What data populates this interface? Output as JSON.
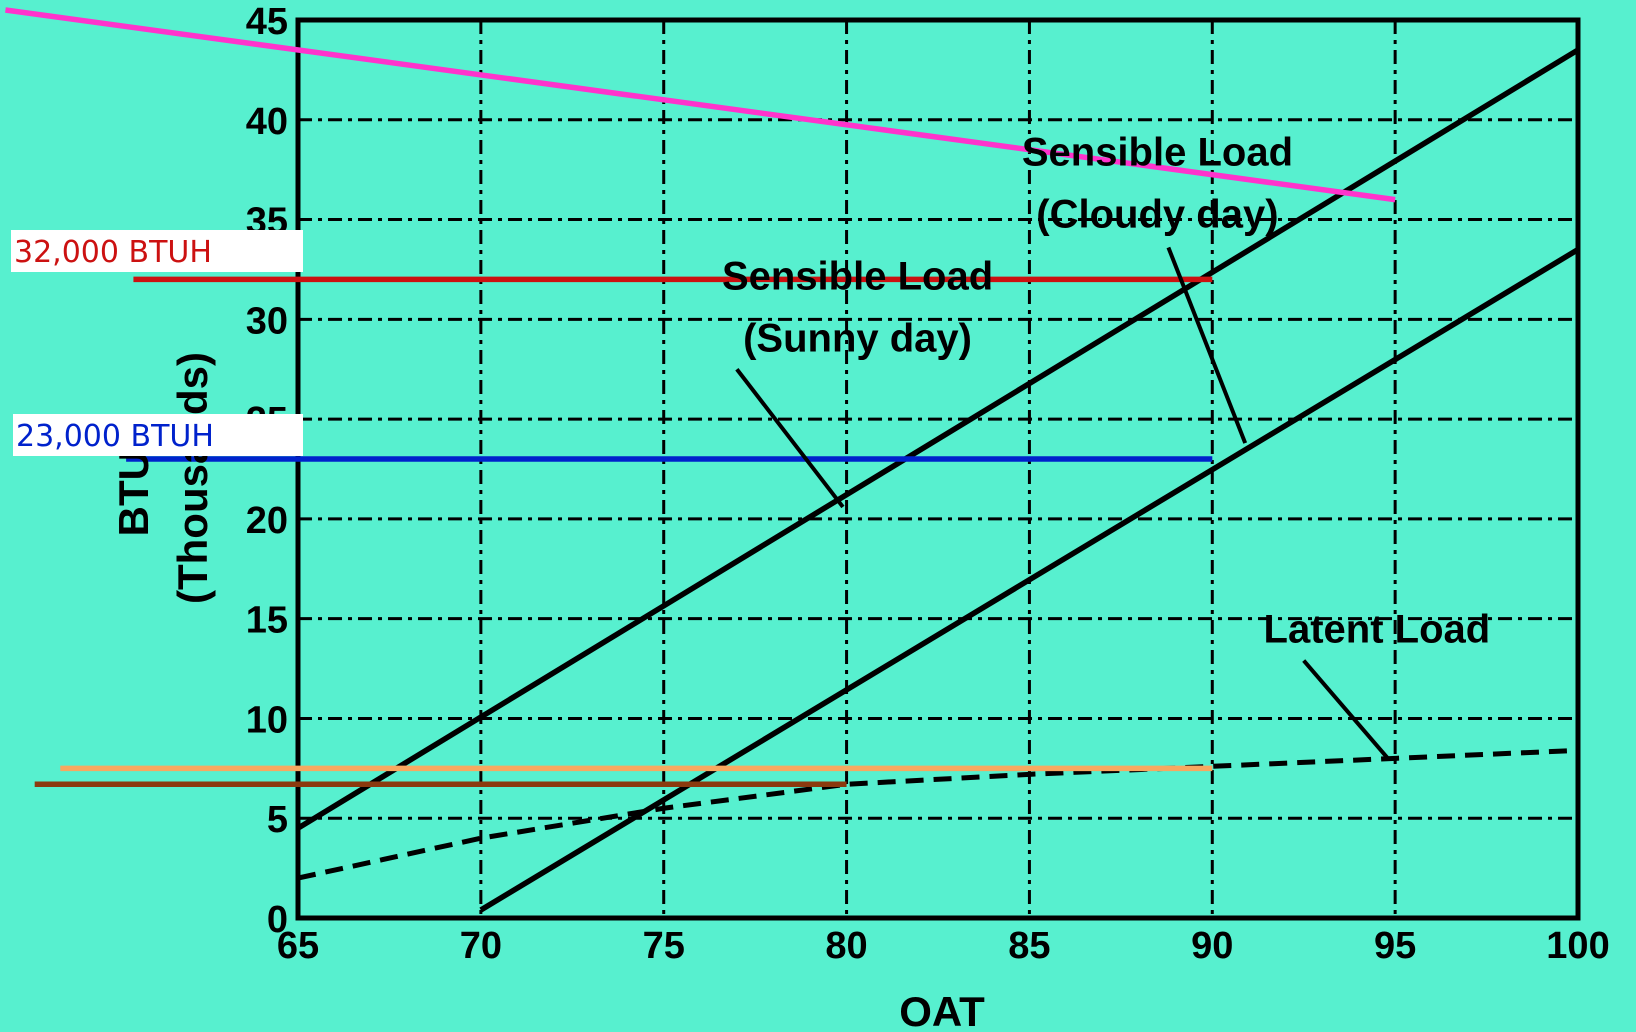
{
  "chart_data": {
    "type": "line",
    "title": "",
    "xlabel": "OAT",
    "ylabel": "BTUH",
    "ylabel_sub": "(Thousands)",
    "xlim": [
      65,
      100
    ],
    "ylim": [
      0,
      45
    ],
    "grid": true,
    "x_ticks": [
      65,
      70,
      75,
      80,
      85,
      90,
      95,
      100
    ],
    "y_ticks": [
      0,
      5,
      10,
      15,
      20,
      25,
      30,
      35,
      40,
      45
    ],
    "series": [
      {
        "key": "cloudy",
        "x": [
          65,
          100
        ],
        "y": [
          4.5,
          43.5
        ],
        "color": "#000000",
        "dash": false
      },
      {
        "key": "sunny",
        "x": [
          70,
          100
        ],
        "y": [
          0.4,
          33.5
        ],
        "color": "#000000",
        "dash": false
      },
      {
        "key": "latent",
        "x": [
          65,
          70,
          75,
          80,
          85,
          90,
          95,
          100
        ],
        "y": [
          2.0,
          4.0,
          5.5,
          6.7,
          7.2,
          7.6,
          8.0,
          8.4
        ],
        "color": "#000000",
        "dash": true
      },
      {
        "key": "pink",
        "x": [
          57,
          95
        ],
        "y": [
          45.5,
          36.0
        ],
        "color": "#ff33cc",
        "dash": false
      },
      {
        "key": "red",
        "x": [
          60.5,
          90
        ],
        "y": [
          32.0,
          32.0
        ],
        "color": "#cc1111",
        "dash": false
      },
      {
        "key": "blue",
        "x": [
          60.3,
          90
        ],
        "y": [
          23.0,
          23.0
        ],
        "color": "#0022cc",
        "dash": false
      },
      {
        "key": "orange",
        "x": [
          58.5,
          90
        ],
        "y": [
          7.5,
          7.5
        ],
        "color": "#f7a860",
        "dash": false
      },
      {
        "key": "brown",
        "x": [
          57.8,
          80
        ],
        "y": [
          6.7,
          6.7
        ],
        "color": "#8b3a0f",
        "dash": false
      }
    ],
    "annotations": [
      {
        "key": "cloudy_label",
        "lines": [
          "Sensible Load",
          "(Cloudy day)"
        ],
        "at": [
          88.5,
          37.7
        ],
        "arrow_from": [
          88.8,
          33.6
        ],
        "arrow_to": [
          90.9,
          23.8
        ]
      },
      {
        "key": "sunny_label",
        "lines": [
          "Sensible Load",
          "(Sunny day)"
        ],
        "at": [
          80.3,
          31.5
        ],
        "arrow_from": [
          77.0,
          27.5
        ],
        "arrow_to": [
          79.9,
          20.6
        ]
      },
      {
        "key": "latent_label",
        "lines": [
          "Latent Load"
        ],
        "at": [
          94.5,
          13.8
        ],
        "arrow_from": [
          92.5,
          12.9
        ],
        "arrow_to": [
          94.8,
          8.0
        ]
      }
    ]
  },
  "labels": {
    "btuh_32": "32,000 BTUH",
    "btuh_23": "23,000 BTUH"
  },
  "colors": {
    "background": "#57f0cf",
    "btuh_32_text": "#cc1111",
    "btuh_23_text": "#0022cc"
  }
}
